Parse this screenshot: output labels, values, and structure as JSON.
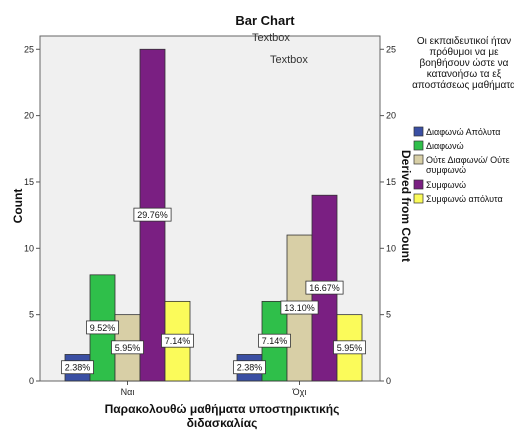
{
  "chart_data": {
    "type": "bar",
    "title": "Bar Chart",
    "xlabel": "Παρακολουθώ μαθήματα υποστηρικτικής διδασκαλίας",
    "ylabel": "Count",
    "y2label": "Derived from Count",
    "ylim": [
      0,
      26
    ],
    "yticks": [
      0,
      5,
      10,
      15,
      20,
      25
    ],
    "categories": [
      "Ναι",
      "Όχι"
    ],
    "annotations": [
      "Textbox",
      "Textbox"
    ],
    "legend_title": "Οι εκπαιδευτικοί ήταν πρόθυμοι να με βοηθήσουν ώστε να κατανοήσω τα εξ αποστάσεως μαθήματα",
    "legend_position": "right",
    "grid": false,
    "series": [
      {
        "name": "Διαφωνώ Απόλυτα",
        "color": "#3a4fa3",
        "values": [
          2,
          2
        ],
        "labels": [
          "2.38%",
          "2.38%"
        ]
      },
      {
        "name": "Διαφωνώ",
        "color": "#2fbf4a",
        "values": [
          8,
          6
        ],
        "labels": [
          "9.52%",
          "7.14%"
        ]
      },
      {
        "name": "Ούτε Διαφωνώ/ Ούτε συμφωνώ",
        "color": "#d8cfa6",
        "values": [
          5,
          11
        ],
        "labels": [
          "5.95%",
          "13.10%"
        ]
      },
      {
        "name": "Συμφωνώ",
        "color": "#7a1f82",
        "values": [
          25,
          14
        ],
        "labels": [
          "29.76%",
          "16.67%"
        ]
      },
      {
        "name": "Συμφωνώ απόλυτα",
        "color": "#fbfb5a",
        "values": [
          6,
          5
        ],
        "labels": [
          "7.14%",
          "5.95%"
        ]
      }
    ]
  }
}
